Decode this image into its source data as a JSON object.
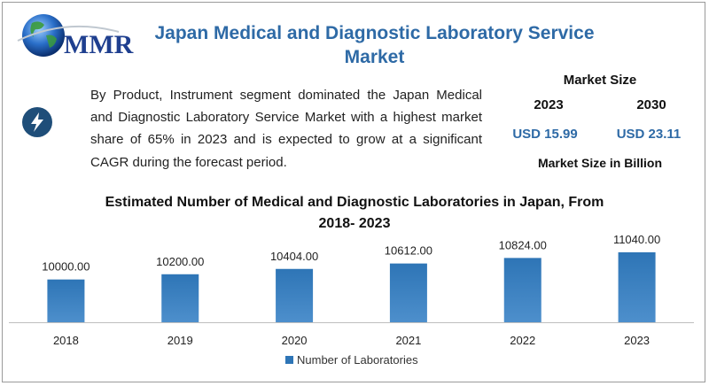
{
  "header": {
    "logo_text": "MMR",
    "title_line1": "Japan Medical and Diagnostic Laboratory Service",
    "title_line2": "Market"
  },
  "summary": {
    "icon": "lightning-icon",
    "text": "By Product, Instrument segment dominated the Japan Medical and Diagnostic Laboratory Service Market with a highest market share of 65% in 2023 and is expected to grow at a significant CAGR during the forecast period."
  },
  "market_size": {
    "title": "Market Size",
    "year1": "2023",
    "year2": "2030",
    "value1": "USD 15.99",
    "value2": "USD 23.11",
    "note": "Market Size in Billion"
  },
  "colors": {
    "title_blue": "#2e6aa6",
    "bar_top": "#2e75b6",
    "bar_bottom": "#4d8fcc"
  },
  "chart_data": {
    "type": "bar",
    "title_line1": "Estimated Number of Medical and Diagnostic Laboratories in Japan, From",
    "title_line2": "2018- 2023",
    "categories": [
      "2018",
      "2019",
      "2020",
      "2021",
      "2022",
      "2023"
    ],
    "series": [
      {
        "name": "Number of Laboratories",
        "values": [
          10000.0,
          10200.0,
          10404.0,
          10612.0,
          10824.0,
          11040.0
        ],
        "labels": [
          "10000.00",
          "10200.00",
          "10404.00",
          "10612.00",
          "10824.00",
          "11040.00"
        ]
      }
    ],
    "legend_position": "bottom",
    "grid": false
  }
}
